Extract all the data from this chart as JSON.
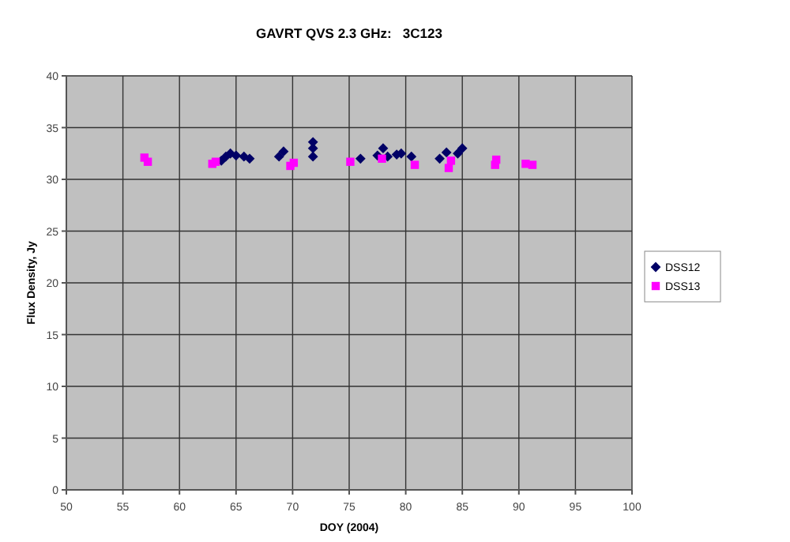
{
  "chart_data": {
    "type": "scatter",
    "title": "GAVRT QVS 2.3 GHz:   3C123",
    "xlabel": "DOY (2004)",
    "ylabel": "Flux Density, Jy",
    "xlim": [
      50,
      100
    ],
    "xticks": [
      50,
      55,
      60,
      65,
      70,
      75,
      80,
      85,
      90,
      95,
      100
    ],
    "ylim": [
      0,
      40
    ],
    "yticks": [
      0,
      5,
      10,
      15,
      20,
      25,
      30,
      35,
      40
    ],
    "grid": true,
    "legend": "right",
    "series": [
      {
        "name": "DSS12",
        "color": "#000066",
        "marker": "diamond",
        "x": [
          63.7,
          64.1,
          64.5,
          65.0,
          65.7,
          66.2,
          68.8,
          69.2,
          71.8,
          71.8,
          71.8,
          76.0,
          77.5,
          78.0,
          78.4,
          79.2,
          79.6,
          80.5,
          83.0,
          83.6,
          84.6,
          85.0
        ],
        "values": [
          31.8,
          32.2,
          32.5,
          32.3,
          32.2,
          32.0,
          32.2,
          32.7,
          32.2,
          33.0,
          33.6,
          32.0,
          32.3,
          33.0,
          32.2,
          32.4,
          32.5,
          32.2,
          32.0,
          32.6,
          32.5,
          33.0
        ]
      },
      {
        "name": "DSS13",
        "color": "#ff00ff",
        "marker": "square",
        "x": [
          56.9,
          57.2,
          62.9,
          63.2,
          69.8,
          70.1,
          75.1,
          77.9,
          80.8,
          83.8,
          84.0,
          87.9,
          88.0,
          90.6,
          91.2
        ],
        "values": [
          32.1,
          31.7,
          31.5,
          31.7,
          31.3,
          31.6,
          31.7,
          32.0,
          31.4,
          31.1,
          31.8,
          31.4,
          31.9,
          31.5,
          31.4
        ]
      }
    ]
  }
}
